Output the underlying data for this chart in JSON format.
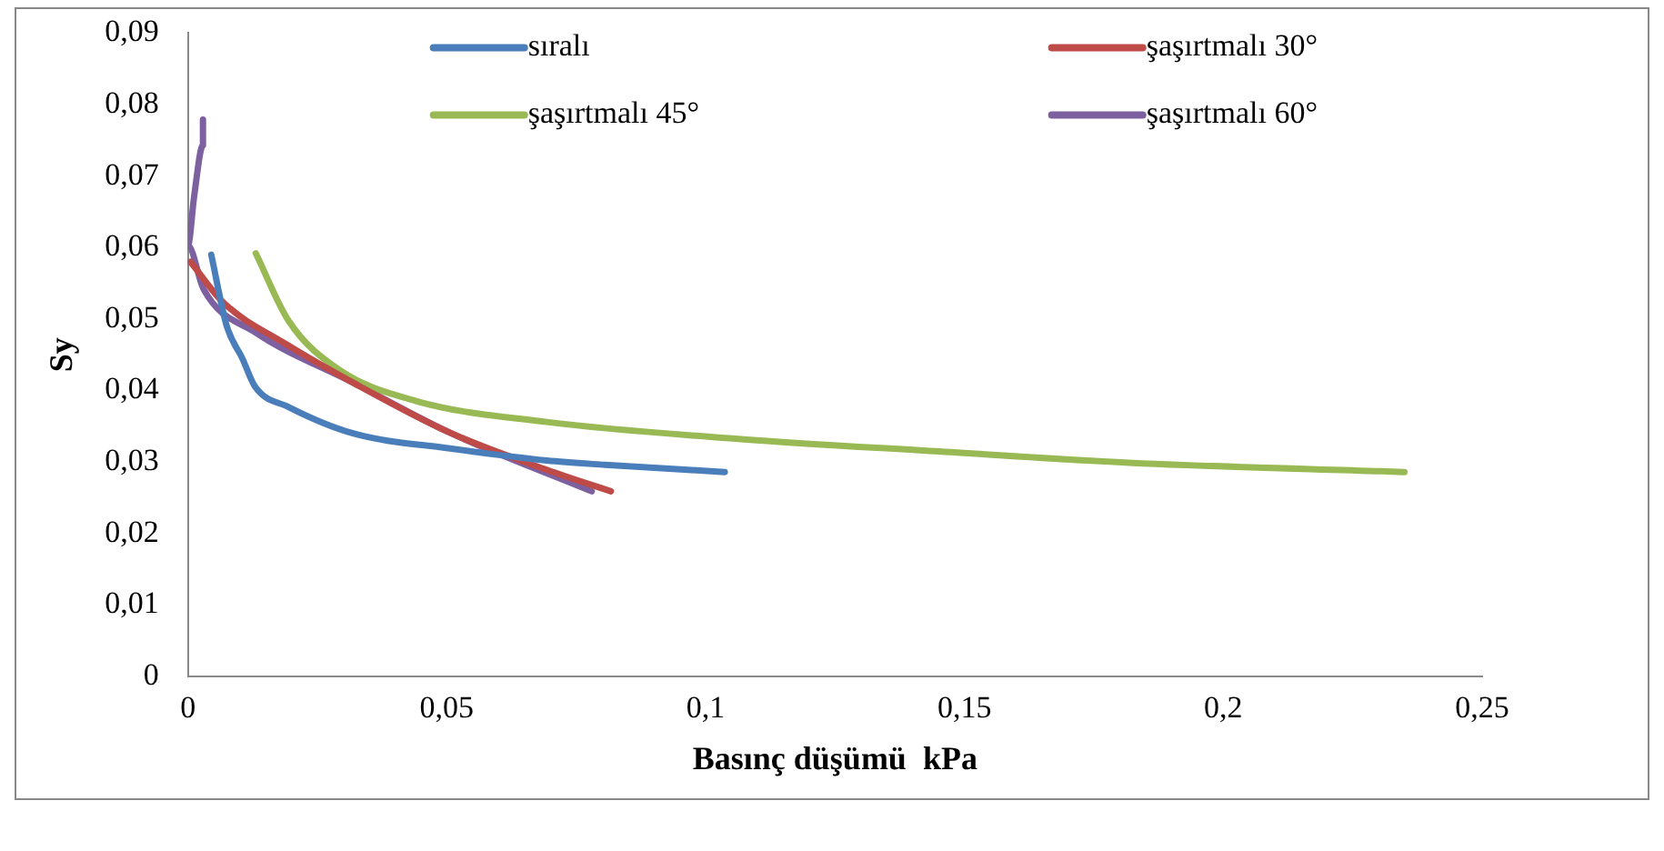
{
  "chart_data": {
    "type": "line",
    "xlabel": "Basınç düşümü  kPa",
    "ylabel": "Sy",
    "xlim": [
      0,
      0.25
    ],
    "ylim": [
      0,
      0.09
    ],
    "xticks": [
      0,
      {
        "value": 0.05,
        "label": "0,05"
      },
      {
        "value": 0.1,
        "label": "0,1"
      },
      {
        "value": 0.15,
        "label": "0,15"
      },
      {
        "value": 0.2,
        "label": "0,2"
      },
      {
        "value": 0.25,
        "label": "0,25"
      }
    ],
    "yticks": [
      0,
      {
        "value": 0.01,
        "label": "0,01"
      },
      {
        "value": 0.02,
        "label": "0,02"
      },
      {
        "value": 0.03,
        "label": "0,03"
      },
      {
        "value": 0.04,
        "label": "0,04"
      },
      {
        "value": 0.05,
        "label": "0,05"
      },
      {
        "value": 0.06,
        "label": "0,06"
      },
      {
        "value": 0.07,
        "label": "0,07"
      },
      {
        "value": 0.08,
        "label": "0,08"
      },
      {
        "value": 0.09,
        "label": "0,09"
      }
    ],
    "grid": false,
    "legend": "top",
    "marker": "none",
    "line_style": "solid",
    "series": [
      {
        "name": "sıralı",
        "color": "#4a7ebb",
        "x": [
          0.0045,
          0.0075,
          0.0105,
          0.013,
          0.0194,
          0.0319,
          0.0506,
          0.0693,
          0.0806,
          0.1037
        ],
        "values": [
          0.059,
          0.049,
          0.0445,
          0.0405,
          0.0377,
          0.034,
          0.0319,
          0.0302,
          0.0296,
          0.0286
        ]
      },
      {
        "name": "şaşırtmalı 30°",
        "color": "#be4b48",
        "x": [
          0.0005,
          0.0067,
          0.0194,
          0.0319,
          0.0506,
          0.0693,
          0.0817
        ],
        "values": [
          0.058,
          0.0524,
          0.0463,
          0.0411,
          0.0341,
          0.0289,
          0.0259
        ]
      },
      {
        "name": "şaşırtmalı 45°",
        "color": "#98b954",
        "x": [
          0.0131,
          0.0194,
          0.0292,
          0.0442,
          0.0693,
          0.1068,
          0.1443,
          0.1818,
          0.2305,
          0.235
        ],
        "values": [
          0.0592,
          0.0498,
          0.0429,
          0.0385,
          0.0356,
          0.0332,
          0.0315,
          0.0299,
          0.0287,
          0.0286
        ]
      },
      {
        "name": "şaşırtmalı 60°",
        "color": "#7d60a0",
        "x": [
          0.0029,
          0.0029,
          0.0012,
          0,
          0.003,
          0.0131,
          0.0319,
          0.0506,
          0.078
        ],
        "values": [
          0.0779,
          0.0743,
          0.0672,
          0.0603,
          0.0542,
          0.0481,
          0.0411,
          0.0341,
          0.0259
        ]
      }
    ]
  }
}
